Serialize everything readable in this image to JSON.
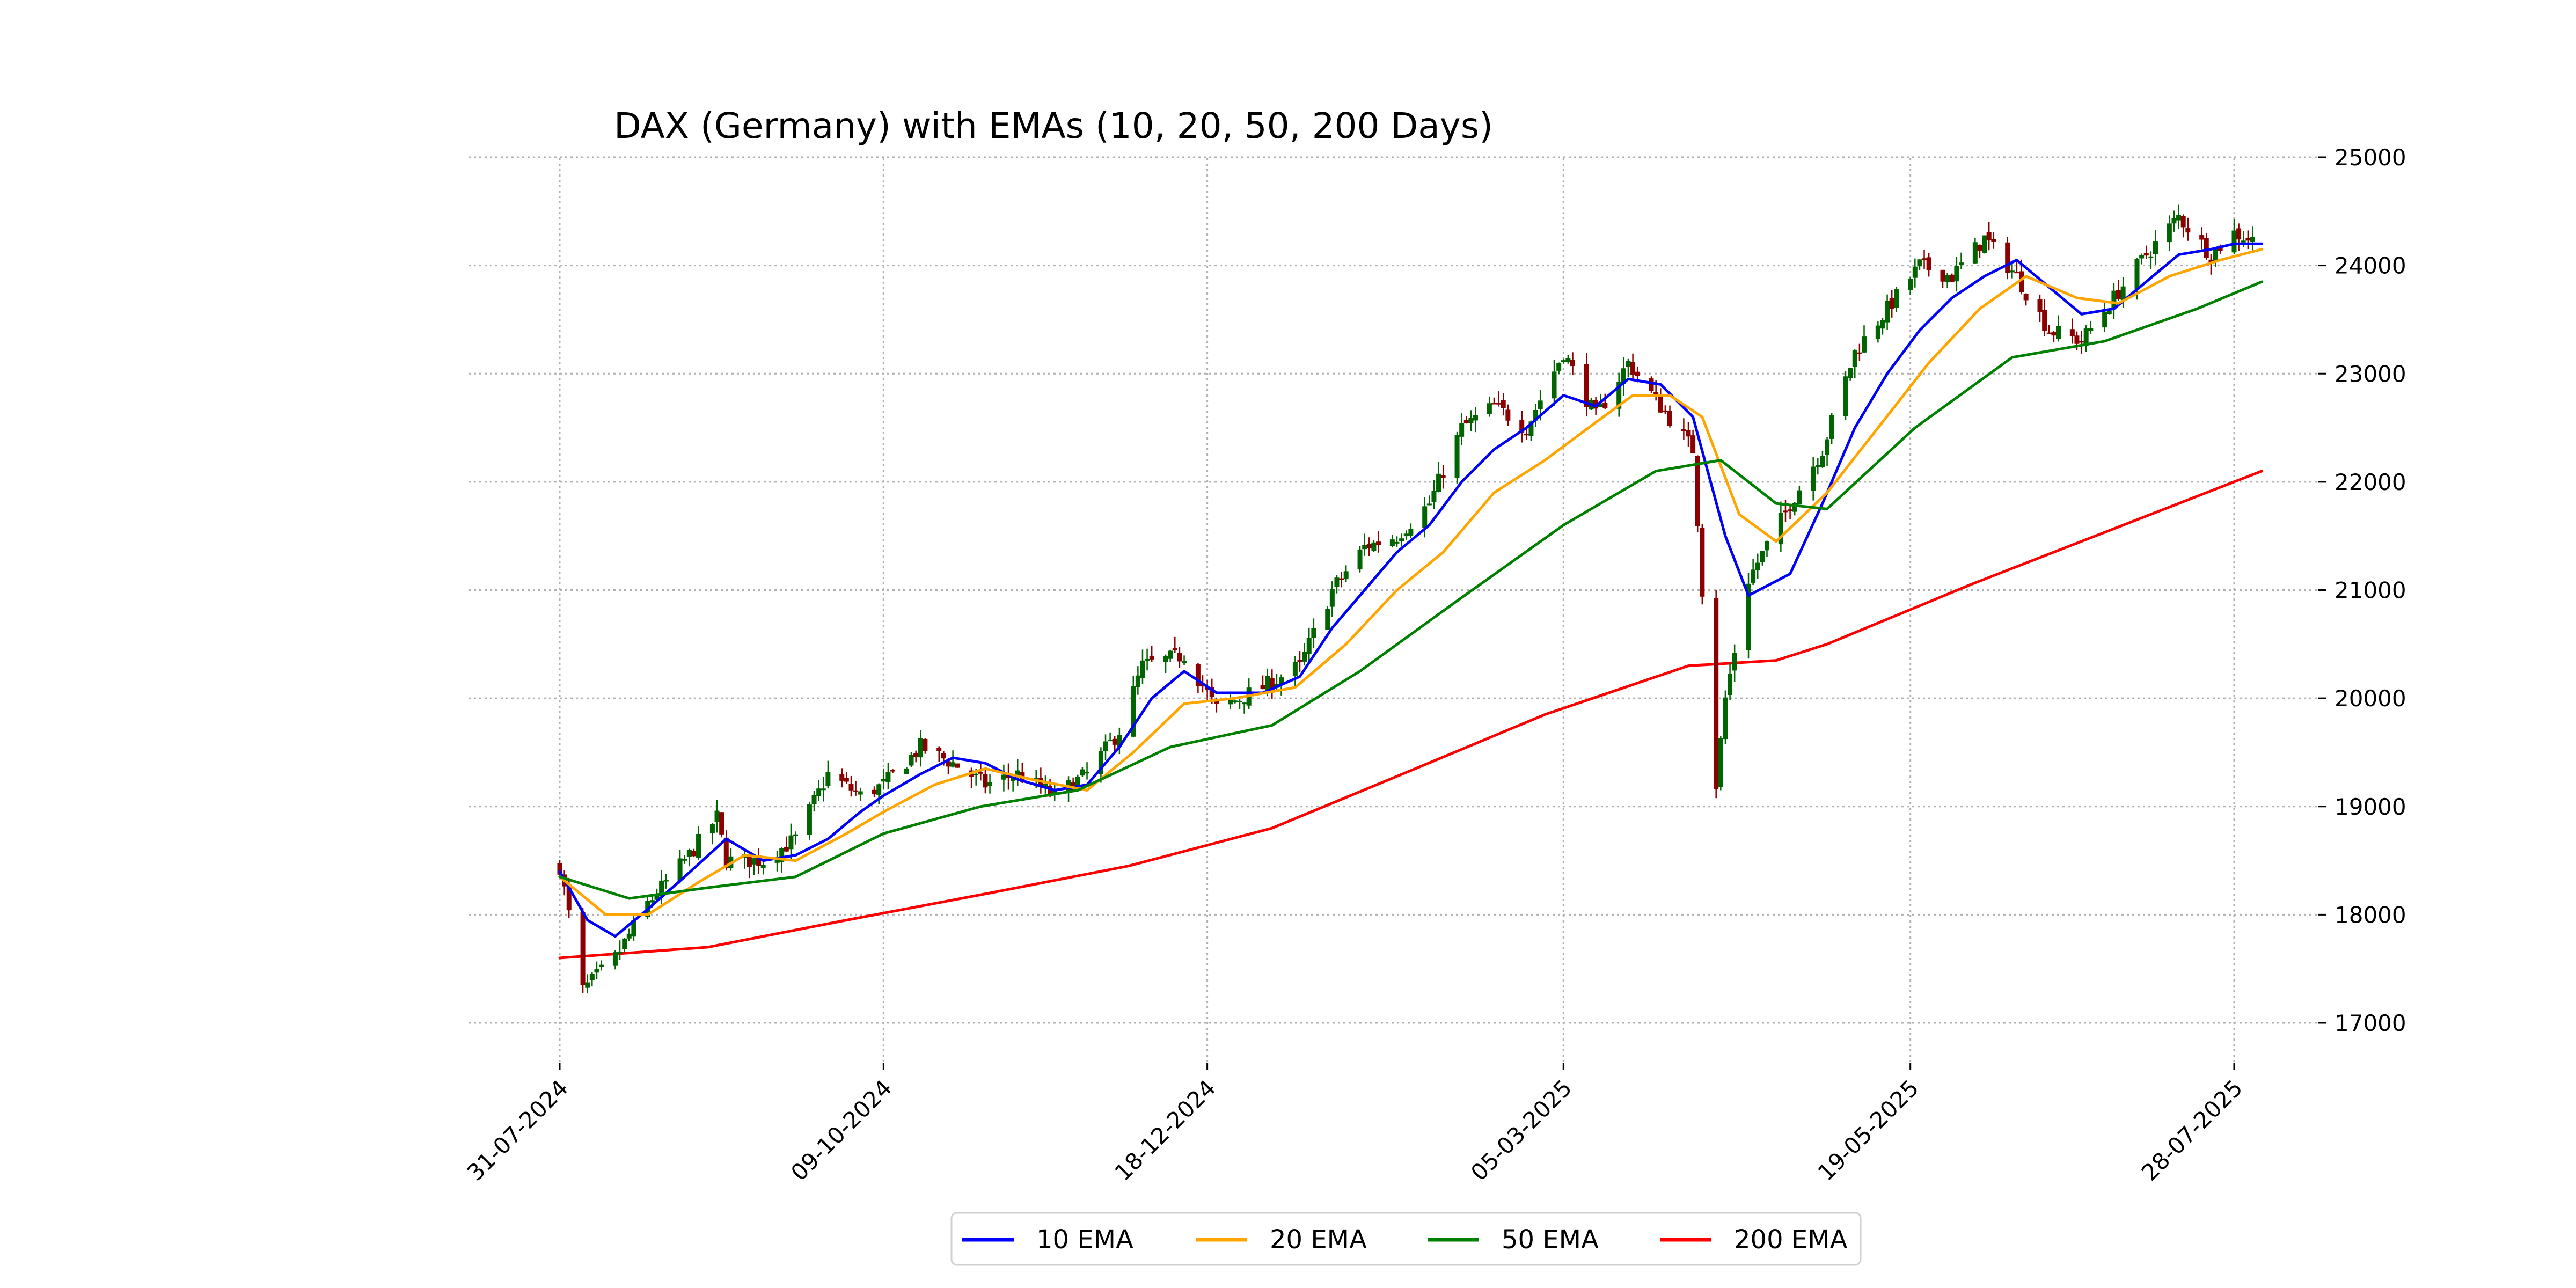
{
  "chart_data": {
    "type": "line",
    "title": "DAX (Germany) with EMAs (10, 20, 50, 200 Days)",
    "xlabel": "",
    "ylabel": "",
    "ylim": [
      16650,
      25000
    ],
    "yticks": [
      17000,
      18000,
      19000,
      20000,
      21000,
      22000,
      23000,
      24000,
      25000
    ],
    "x_range": [
      "2024-07-07",
      "2025-08-23"
    ],
    "xticks": [
      {
        "date": "2024-07-31",
        "label": "31-07-2024"
      },
      {
        "date": "2024-10-09",
        "label": "09-10-2024"
      },
      {
        "date": "2024-12-18",
        "label": "18-12-2024"
      },
      {
        "date": "2025-03-05",
        "label": "05-03-2025"
      },
      {
        "date": "2025-05-19",
        "label": "19-05-2025"
      },
      {
        "date": "2025-07-28",
        "label": "28-07-2025"
      }
    ],
    "grid": true,
    "legend_position": "bottom-center",
    "series": [
      {
        "name": "10 EMA",
        "color": "#0000ff",
        "points": [
          [
            "2024-07-31",
            18400
          ],
          [
            "2024-08-06",
            17950
          ],
          [
            "2024-08-12",
            17800
          ],
          [
            "2024-08-19",
            18050
          ],
          [
            "2024-08-27",
            18350
          ],
          [
            "2024-09-05",
            18700
          ],
          [
            "2024-09-13",
            18500
          ],
          [
            "2024-09-20",
            18550
          ],
          [
            "2024-09-27",
            18700
          ],
          [
            "2024-10-04",
            18950
          ],
          [
            "2024-10-09",
            19100
          ],
          [
            "2024-10-17",
            19300
          ],
          [
            "2024-10-24",
            19450
          ],
          [
            "2024-10-31",
            19400
          ],
          [
            "2024-11-07",
            19250
          ],
          [
            "2024-11-15",
            19150
          ],
          [
            "2024-11-22",
            19200
          ],
          [
            "2024-11-29",
            19550
          ],
          [
            "2024-12-06",
            20000
          ],
          [
            "2024-12-13",
            20250
          ],
          [
            "2024-12-20",
            20050
          ],
          [
            "2024-12-30",
            20050
          ],
          [
            "2025-01-07",
            20200
          ],
          [
            "2025-01-14",
            20650
          ],
          [
            "2025-01-21",
            21000
          ],
          [
            "2025-01-28",
            21350
          ],
          [
            "2025-02-04",
            21600
          ],
          [
            "2025-02-11",
            22000
          ],
          [
            "2025-02-18",
            22300
          ],
          [
            "2025-02-25",
            22500
          ],
          [
            "2025-03-05",
            22800
          ],
          [
            "2025-03-12",
            22700
          ],
          [
            "2025-03-19",
            22950
          ],
          [
            "2025-03-26",
            22900
          ],
          [
            "2025-04-02",
            22600
          ],
          [
            "2025-04-09",
            21500
          ],
          [
            "2025-04-14",
            20950
          ],
          [
            "2025-04-23",
            21150
          ],
          [
            "2025-04-30",
            21800
          ],
          [
            "2025-05-07",
            22500
          ],
          [
            "2025-05-14",
            23000
          ],
          [
            "2025-05-21",
            23400
          ],
          [
            "2025-05-28",
            23700
          ],
          [
            "2025-06-04",
            23900
          ],
          [
            "2025-06-11",
            24050
          ],
          [
            "2025-06-18",
            23800
          ],
          [
            "2025-06-25",
            23550
          ],
          [
            "2025-07-02",
            23600
          ],
          [
            "2025-07-09",
            23850
          ],
          [
            "2025-07-16",
            24100
          ],
          [
            "2025-07-23",
            24150
          ],
          [
            "2025-07-28",
            24200
          ],
          [
            "2025-08-03",
            24200
          ]
        ]
      },
      {
        "name": "20 EMA",
        "color": "#ffa500",
        "points": [
          [
            "2024-07-31",
            18350
          ],
          [
            "2024-08-10",
            18000
          ],
          [
            "2024-08-19",
            18000
          ],
          [
            "2024-08-30",
            18300
          ],
          [
            "2024-09-09",
            18550
          ],
          [
            "2024-09-20",
            18500
          ],
          [
            "2024-10-01",
            18750
          ],
          [
            "2024-10-09",
            18950
          ],
          [
            "2024-10-20",
            19200
          ],
          [
            "2024-10-31",
            19350
          ],
          [
            "2024-11-10",
            19250
          ],
          [
            "2024-11-22",
            19150
          ],
          [
            "2024-12-02",
            19500
          ],
          [
            "2024-12-13",
            19950
          ],
          [
            "2024-12-24",
            20000
          ],
          [
            "2025-01-06",
            20100
          ],
          [
            "2025-01-17",
            20500
          ],
          [
            "2025-01-28",
            21000
          ],
          [
            "2025-02-07",
            21350
          ],
          [
            "2025-02-18",
            21900
          ],
          [
            "2025-03-01",
            22200
          ],
          [
            "2025-03-12",
            22550
          ],
          [
            "2025-03-20",
            22800
          ],
          [
            "2025-03-28",
            22800
          ],
          [
            "2025-04-04",
            22600
          ],
          [
            "2025-04-12",
            21700
          ],
          [
            "2025-04-20",
            21450
          ],
          [
            "2025-05-01",
            21900
          ],
          [
            "2025-05-12",
            22500
          ],
          [
            "2025-05-23",
            23100
          ],
          [
            "2025-06-03",
            23600
          ],
          [
            "2025-06-13",
            23900
          ],
          [
            "2025-06-24",
            23700
          ],
          [
            "2025-07-03",
            23650
          ],
          [
            "2025-07-14",
            23900
          ],
          [
            "2025-07-25",
            24050
          ],
          [
            "2025-08-03",
            24150
          ]
        ]
      },
      {
        "name": "50 EMA",
        "color": "#008000",
        "points": [
          [
            "2024-07-31",
            18350
          ],
          [
            "2024-08-15",
            18150
          ],
          [
            "2024-09-01",
            18250
          ],
          [
            "2024-09-20",
            18350
          ],
          [
            "2024-10-09",
            18750
          ],
          [
            "2024-10-30",
            19000
          ],
          [
            "2024-11-20",
            19150
          ],
          [
            "2024-12-10",
            19550
          ],
          [
            "2025-01-01",
            19750
          ],
          [
            "2025-01-20",
            20250
          ],
          [
            "2025-02-10",
            20900
          ],
          [
            "2025-03-05",
            21600
          ],
          [
            "2025-03-25",
            22100
          ],
          [
            "2025-04-08",
            22200
          ],
          [
            "2025-04-20",
            21800
          ],
          [
            "2025-05-01",
            21750
          ],
          [
            "2025-05-20",
            22500
          ],
          [
            "2025-06-10",
            23150
          ],
          [
            "2025-06-30",
            23300
          ],
          [
            "2025-07-20",
            23600
          ],
          [
            "2025-08-03",
            23850
          ]
        ]
      },
      {
        "name": "200 EMA",
        "color": "#ff0000",
        "points": [
          [
            "2024-07-31",
            17600
          ],
          [
            "2024-09-01",
            17700
          ],
          [
            "2024-10-01",
            17950
          ],
          [
            "2024-11-01",
            18200
          ],
          [
            "2024-12-01",
            18450
          ],
          [
            "2025-01-01",
            18800
          ],
          [
            "2025-02-01",
            19350
          ],
          [
            "2025-03-01",
            19850
          ],
          [
            "2025-04-01",
            20300
          ],
          [
            "2025-04-20",
            20350
          ],
          [
            "2025-05-01",
            20500
          ],
          [
            "2025-06-01",
            21050
          ],
          [
            "2025-07-01",
            21550
          ],
          [
            "2025-08-03",
            22100
          ]
        ]
      }
    ],
    "candles": {
      "up_color": "#006400",
      "down_color": "#8b0000",
      "anchors": [
        [
          "2024-07-31",
          18450
        ],
        [
          "2024-08-02",
          18000
        ],
        [
          "2024-08-05",
          17300
        ],
        [
          "2024-08-12",
          17600
        ],
        [
          "2024-08-19",
          18100
        ],
        [
          "2024-08-28",
          18550
        ],
        [
          "2024-09-03",
          18900
        ],
        [
          "2024-09-05",
          18500
        ],
        [
          "2024-09-13",
          18500
        ],
        [
          "2024-09-20",
          18700
        ],
        [
          "2024-09-27",
          19300
        ],
        [
          "2024-10-04",
          19100
        ],
        [
          "2024-10-09",
          19200
        ],
        [
          "2024-10-17",
          19550
        ],
        [
          "2024-10-24",
          19400
        ],
        [
          "2024-10-31",
          19200
        ],
        [
          "2024-11-07",
          19300
        ],
        [
          "2024-11-15",
          19100
        ],
        [
          "2024-11-22",
          19300
        ],
        [
          "2024-11-29",
          19700
        ],
        [
          "2024-12-04",
          20300
        ],
        [
          "2024-12-13",
          20400
        ],
        [
          "2024-12-20",
          19900
        ],
        [
          "2024-12-30",
          20100
        ],
        [
          "2025-01-07",
          20300
        ],
        [
          "2025-01-14",
          21000
        ],
        [
          "2025-01-21",
          21400
        ],
        [
          "2025-01-28",
          21500
        ],
        [
          "2025-02-04",
          21800
        ],
        [
          "2025-02-11",
          22500
        ],
        [
          "2025-02-18",
          22700
        ],
        [
          "2025-02-25",
          22500
        ],
        [
          "2025-03-05",
          23200
        ],
        [
          "2025-03-12",
          22600
        ],
        [
          "2025-03-19",
          23100
        ],
        [
          "2025-03-26",
          22700
        ],
        [
          "2025-04-02",
          22300
        ],
        [
          "2025-04-04",
          21000
        ],
        [
          "2025-04-07",
          19200
        ],
        [
          "2025-04-09",
          20000
        ],
        [
          "2025-04-14",
          21100
        ],
        [
          "2025-04-23",
          21800
        ],
        [
          "2025-04-30",
          22300
        ],
        [
          "2025-05-07",
          23200
        ],
        [
          "2025-05-14",
          23600
        ],
        [
          "2025-05-21",
          24000
        ],
        [
          "2025-05-28",
          23900
        ],
        [
          "2025-06-04",
          24250
        ],
        [
          "2025-06-11",
          23900
        ],
        [
          "2025-06-18",
          23400
        ],
        [
          "2025-06-25",
          23300
        ],
        [
          "2025-07-02",
          23700
        ],
        [
          "2025-07-09",
          24100
        ],
        [
          "2025-07-16",
          24450
        ],
        [
          "2025-07-23",
          24100
        ],
        [
          "2025-07-28",
          24300
        ],
        [
          "2025-08-03",
          24200
        ]
      ]
    }
  }
}
